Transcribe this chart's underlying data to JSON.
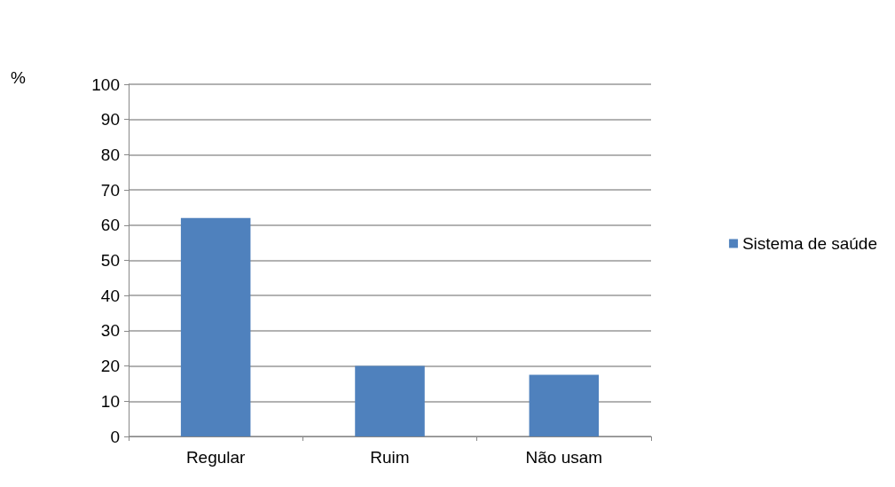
{
  "chart_data": {
    "type": "bar",
    "ylabel": "%",
    "categories": [
      "Regular",
      "Ruim",
      "Não usam"
    ],
    "series": [
      {
        "name": "Sistema de saúde",
        "color": "#4f81bd",
        "values": [
          62,
          20,
          17.5
        ]
      }
    ],
    "ylim": [
      0,
      100
    ],
    "yticks": [
      0,
      10,
      20,
      30,
      40,
      50,
      60,
      70,
      80,
      90,
      100
    ],
    "grid": "y",
    "legend": "right"
  }
}
